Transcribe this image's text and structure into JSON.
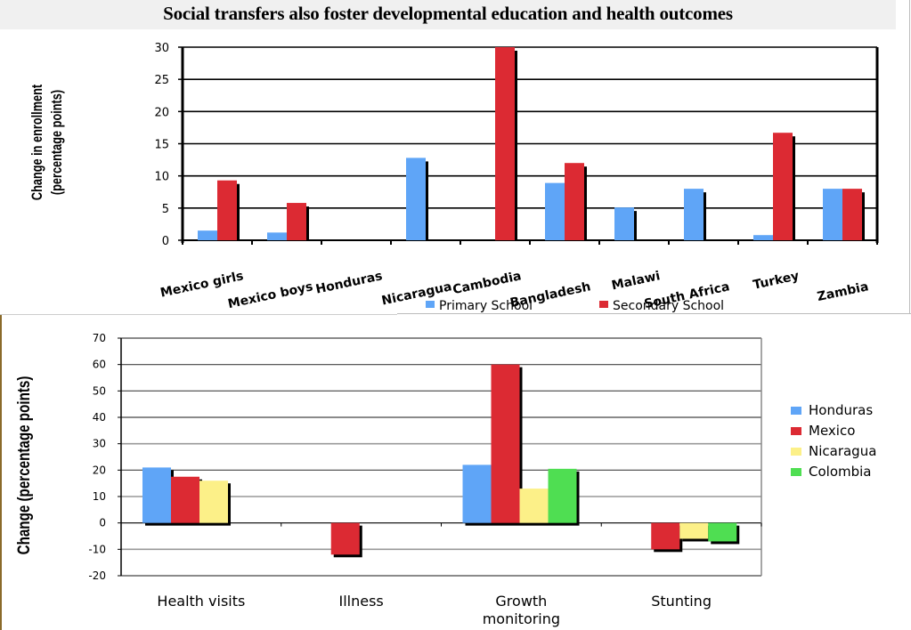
{
  "page": {
    "title": "Social transfers also foster developmental education and health outcomes"
  },
  "chart_data": [
    {
      "type": "bar",
      "title": "",
      "ylabel": "Change in enrollment (percentage points)",
      "ylabel_lines": [
        "Change in enrollment",
        "(percentage points)"
      ],
      "xlabel": "",
      "ylim": [
        0,
        30
      ],
      "yticks": [
        0,
        5,
        10,
        15,
        20,
        25,
        30
      ],
      "grid": true,
      "legend_position": "bottom",
      "categories": [
        "Mexico girls",
        "Mexico boys",
        "Honduras",
        "Nicaragua",
        "Cambodia",
        "Bangladesh",
        "Malawi",
        "South Africa",
        "Turkey",
        "Zambia"
      ],
      "series": [
        {
          "name": "Primary School",
          "color": "#5fa5f7",
          "values": [
            1.5,
            1.2,
            0,
            12.8,
            0,
            8.9,
            5.1,
            8.0,
            0.8,
            8.0
          ]
        },
        {
          "name": "Secondary School",
          "color": "#dc2a33",
          "values": [
            9.3,
            5.8,
            0,
            0,
            30.0,
            12.0,
            0,
            0,
            16.7,
            8.0
          ]
        }
      ]
    },
    {
      "type": "bar",
      "title": "",
      "ylabel": "Change (percentage points)",
      "xlabel": "",
      "ylim": [
        -20,
        70
      ],
      "yticks": [
        -20,
        -10,
        0,
        10,
        20,
        30,
        40,
        50,
        60,
        70
      ],
      "grid": true,
      "legend_position": "right",
      "categories": [
        "Health visits",
        "Illness",
        "Growth monitoring",
        "Stunting"
      ],
      "category_lines": [
        [
          "Health visits"
        ],
        [
          "Illness"
        ],
        [
          "Growth",
          "monitoring"
        ],
        [
          "Stunting"
        ]
      ],
      "series": [
        {
          "name": "Honduras",
          "color": "#5fa5f7",
          "values": [
            21,
            null,
            22,
            null
          ]
        },
        {
          "name": "Mexico",
          "color": "#dc2a33",
          "values": [
            17.5,
            -12,
            60,
            -10
          ]
        },
        {
          "name": "Nicaragua",
          "color": "#fcf088",
          "values": [
            16,
            null,
            13,
            -6
          ]
        },
        {
          "name": "Colombia",
          "color": "#4fde52",
          "values": [
            null,
            null,
            20.5,
            -7
          ]
        }
      ]
    }
  ]
}
